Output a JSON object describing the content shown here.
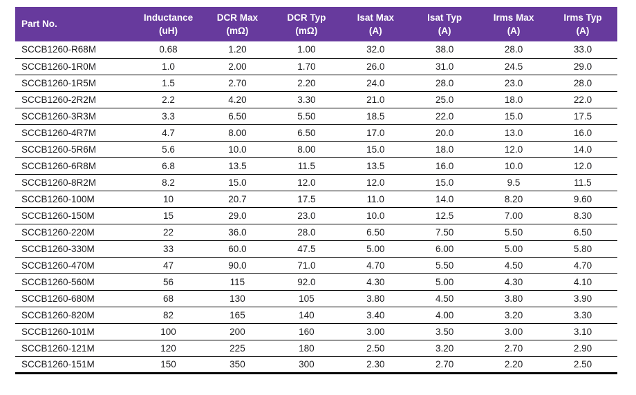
{
  "theme": {
    "accent_color": "#673a9d",
    "text_color": "#1d1d1f",
    "rule_color": "#000000"
  },
  "table": {
    "columns": [
      {
        "label": "Part No.",
        "unit": ""
      },
      {
        "label": "Inductance",
        "unit": "(uH)"
      },
      {
        "label": "DCR Max",
        "unit": "(mΩ)"
      },
      {
        "label": "DCR Typ",
        "unit": "(mΩ)"
      },
      {
        "label": "Isat Max",
        "unit": "(A)"
      },
      {
        "label": "Isat Typ",
        "unit": "(A)"
      },
      {
        "label": "Irms Max",
        "unit": "(A)"
      },
      {
        "label": "Irms Typ",
        "unit": "(A)"
      }
    ],
    "rows": [
      [
        "SCCB1260-R68M",
        "0.68",
        "1.20",
        "1.00",
        "32.0",
        "38.0",
        "28.0",
        "33.0"
      ],
      [
        "SCCB1260-1R0M",
        "1.0",
        "2.00",
        "1.70",
        "26.0",
        "31.0",
        "24.5",
        "29.0"
      ],
      [
        "SCCB1260-1R5M",
        "1.5",
        "2.70",
        "2.20",
        "24.0",
        "28.0",
        "23.0",
        "28.0"
      ],
      [
        "SCCB1260-2R2M",
        "2.2",
        "4.20",
        "3.30",
        "21.0",
        "25.0",
        "18.0",
        "22.0"
      ],
      [
        "SCCB1260-3R3M",
        "3.3",
        "6.50",
        "5.50",
        "18.5",
        "22.0",
        "15.0",
        "17.5"
      ],
      [
        "SCCB1260-4R7M",
        "4.7",
        "8.00",
        "6.50",
        "17.0",
        "20.0",
        "13.0",
        "16.0"
      ],
      [
        "SCCB1260-5R6M",
        "5.6",
        "10.0",
        "8.00",
        "15.0",
        "18.0",
        "12.0",
        "14.0"
      ],
      [
        "SCCB1260-6R8M",
        "6.8",
        "13.5",
        "11.5",
        "13.5",
        "16.0",
        "10.0",
        "12.0"
      ],
      [
        "SCCB1260-8R2M",
        "8.2",
        "15.0",
        "12.0",
        "12.0",
        "15.0",
        "9.5",
        "11.5"
      ],
      [
        "SCCB1260-100M",
        "10",
        "20.7",
        "17.5",
        "11.0",
        "14.0",
        "8.20",
        "9.60"
      ],
      [
        "SCCB1260-150M",
        "15",
        "29.0",
        "23.0",
        "10.0",
        "12.5",
        "7.00",
        "8.30"
      ],
      [
        "SCCB1260-220M",
        "22",
        "36.0",
        "28.0",
        "6.50",
        "7.50",
        "5.50",
        "6.50"
      ],
      [
        "SCCB1260-330M",
        "33",
        "60.0",
        "47.5",
        "5.00",
        "6.00",
        "5.00",
        "5.80"
      ],
      [
        "SCCB1260-470M",
        "47",
        "90.0",
        "71.0",
        "4.70",
        "5.50",
        "4.50",
        "4.70"
      ],
      [
        "SCCB1260-560M",
        "56",
        "115",
        "92.0",
        "4.30",
        "5.00",
        "4.30",
        "4.10"
      ],
      [
        "SCCB1260-680M",
        "68",
        "130",
        "105",
        "3.80",
        "4.50",
        "3.80",
        "3.90"
      ],
      [
        "SCCB1260-820M",
        "82",
        "165",
        "140",
        "3.40",
        "4.00",
        "3.20",
        "3.30"
      ],
      [
        "SCCB1260-101M",
        "100",
        "200",
        "160",
        "3.00",
        "3.50",
        "3.00",
        "3.10"
      ],
      [
        "SCCB1260-121M",
        "120",
        "225",
        "180",
        "2.50",
        "3.20",
        "2.70",
        "2.90"
      ],
      [
        "SCCB1260-151M",
        "150",
        "350",
        "300",
        "2.30",
        "2.70",
        "2.20",
        "2.50"
      ]
    ]
  }
}
